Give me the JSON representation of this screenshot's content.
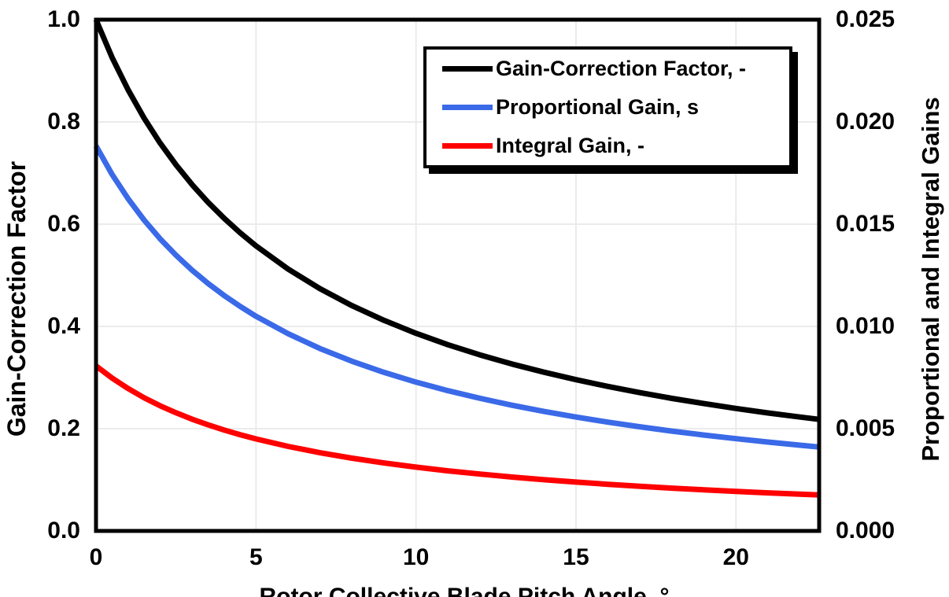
{
  "chart_data": {
    "type": "line",
    "title": "",
    "xlabel": "Rotor Collective Blade Pitch Angle, °",
    "ylabel_left": "Gain-Correction Factor",
    "ylabel_right": "Proportional and Integral Gains",
    "xlim": [
      0,
      22.6
    ],
    "ylim_left": [
      0,
      1.0
    ],
    "ylim_right": [
      0,
      0.025
    ],
    "grid": true,
    "legend_position": "top-right-inside",
    "x_ticks": [
      "0",
      "5",
      "10",
      "15",
      "20"
    ],
    "x_tick_values": [
      0,
      5,
      10,
      15,
      20
    ],
    "left_ticks": [
      "0.0",
      "0.2",
      "0.4",
      "0.6",
      "0.8",
      "1.0"
    ],
    "left_tick_values": [
      0,
      0.2,
      0.4,
      0.6,
      0.8,
      1.0
    ],
    "right_ticks": [
      "0.000",
      "0.005",
      "0.010",
      "0.015",
      "0.020",
      "0.025"
    ],
    "right_tick_values": [
      0,
      0.005,
      0.01,
      0.015,
      0.02,
      0.025
    ],
    "colors": {
      "grid": "#ebebeb",
      "frame": "#000000"
    },
    "x": [
      0,
      0.5,
      1,
      1.5,
      2,
      2.5,
      3,
      3.5,
      4,
      4.5,
      5,
      6,
      7,
      8,
      9,
      10,
      11,
      12,
      13,
      14,
      15,
      16,
      17,
      18,
      19,
      20,
      21,
      22,
      22.6
    ],
    "series": [
      {
        "name": "Gain-Correction Factor, -",
        "axis": "left",
        "color": "#000000",
        "values": [
          1.0,
          0.9265,
          0.8631,
          0.8077,
          0.7591,
          0.716,
          0.6775,
          0.6429,
          0.6117,
          0.5834,
          0.5576,
          0.5123,
          0.4738,
          0.4406,
          0.4119,
          0.3866,
          0.3642,
          0.3443,
          0.3265,
          0.3104,
          0.2959,
          0.2826,
          0.2705,
          0.2593,
          0.2491,
          0.2396,
          0.2308,
          0.2227,
          0.2181
        ]
      },
      {
        "name": "Proportional Gain, s",
        "axis": "right",
        "color": "#3b6ae8",
        "values": [
          0.018827,
          0.017443,
          0.016249,
          0.015206,
          0.014291,
          0.013479,
          0.012755,
          0.012104,
          0.011517,
          0.010984,
          0.010498,
          0.009645,
          0.00892,
          0.008296,
          0.007754,
          0.007278,
          0.006858,
          0.006483,
          0.006147,
          0.005844,
          0.00557,
          0.00532,
          0.005092,
          0.004882,
          0.004689,
          0.004511,
          0.004346,
          0.004192,
          0.004105
        ]
      },
      {
        "name": "Integral Gain, -",
        "axis": "right",
        "color": "#ff0000",
        "values": [
          0.008069,
          0.007476,
          0.006964,
          0.006517,
          0.006125,
          0.005777,
          0.005467,
          0.005188,
          0.004936,
          0.004707,
          0.004499,
          0.004133,
          0.003823,
          0.003556,
          0.003323,
          0.003119,
          0.002939,
          0.002779,
          0.002634,
          0.002505,
          0.002387,
          0.00228,
          0.002182,
          0.002092,
          0.00201,
          0.001933,
          0.001862,
          0.001797,
          0.001759
        ]
      }
    ]
  }
}
